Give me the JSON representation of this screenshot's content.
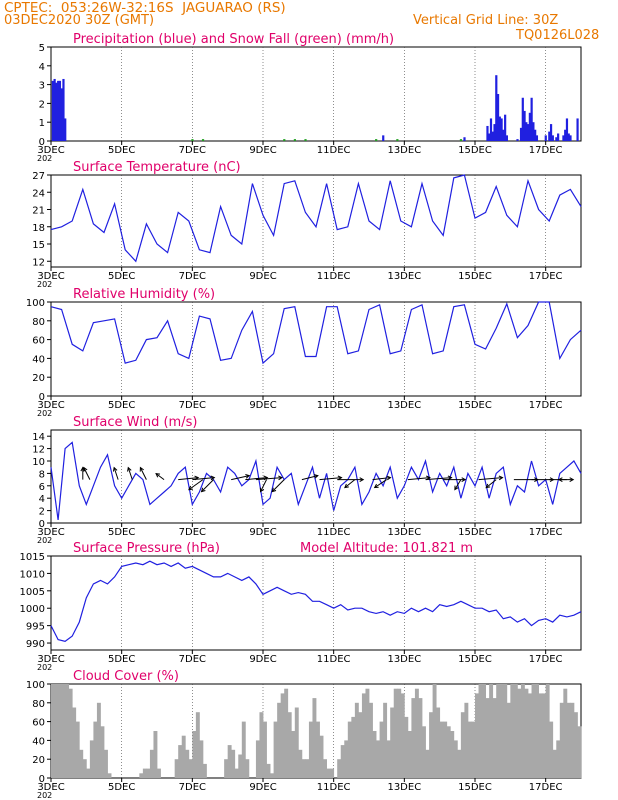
{
  "header": {
    "line1": "CPTEC:  053:26W-32:16S  JAGUARAO (RS)",
    "line2": "03DEC2020 30Z (GMT)",
    "grid_note": "Vertical Grid Line: 30Z",
    "code": "TQ0126L028"
  },
  "colors": {
    "header": "#e87800",
    "panel_title": "#e0006a",
    "line": "#2020e0",
    "snow": "#20a020",
    "cloud": "#a8a8a8",
    "axis": "#000000"
  },
  "x_axis": {
    "start_day": 3,
    "end_day": 18,
    "tick_labels": [
      "3DEC",
      "5DEC",
      "7DEC",
      "9DEC",
      "11DEC",
      "13DEC",
      "15DEC",
      "17DEC"
    ],
    "tick_days": [
      3,
      5,
      7,
      9,
      11,
      13,
      15,
      17
    ],
    "year_stub": "202"
  },
  "chart_data": [
    {
      "type": "bar",
      "title": "Precipitation (blue) and Snow Fall (green) (mm/h)",
      "ylim": [
        0,
        5
      ],
      "yticks": [
        0,
        1,
        2,
        3,
        4,
        5
      ],
      "series": [
        {
          "name": "Precipitation",
          "color": "blue",
          "x": [
            3.05,
            3.1,
            3.15,
            3.2,
            3.25,
            3.3,
            3.35,
            3.4,
            12.4,
            14.7,
            15.35,
            15.4,
            15.45,
            15.5,
            15.55,
            15.6,
            15.65,
            15.7,
            15.75,
            15.8,
            15.85,
            15.9,
            16.2,
            16.3,
            16.35,
            16.4,
            16.45,
            16.5,
            16.55,
            16.6,
            16.65,
            16.7,
            16.75,
            17.0,
            17.1,
            17.15,
            17.2,
            17.3,
            17.35,
            17.5,
            17.55,
            17.6,
            17.65,
            17.7,
            17.9
          ],
          "values": [
            3.2,
            3.3,
            3.1,
            3.2,
            3.2,
            2.8,
            3.3,
            1.2,
            0.3,
            0.2,
            0.8,
            0.4,
            1.2,
            0.5,
            0.9,
            3.5,
            2.5,
            1.3,
            1.2,
            0.6,
            1.4,
            0.3,
            0.1,
            0.7,
            2.3,
            1.6,
            1.0,
            0.9,
            1.5,
            2.3,
            1.0,
            0.6,
            0.3,
            0.3,
            0.5,
            0.9,
            0.3,
            0.2,
            0.4,
            0.3,
            0.6,
            1.2,
            0.4,
            0.3,
            1.2
          ]
        },
        {
          "name": "Snow Fall",
          "color": "green",
          "x": [
            7.0,
            7.3,
            9.6,
            9.9,
            10.2,
            12.2,
            12.8,
            14.6
          ],
          "values": [
            0.1,
            0.1,
            0.1,
            0.1,
            0.1,
            0.1,
            0.1,
            0.1
          ]
        }
      ]
    },
    {
      "type": "line",
      "title": "Surface Temperature (nC)",
      "ylim": [
        11,
        27
      ],
      "yticks": [
        12,
        15,
        18,
        21,
        24,
        27
      ],
      "x": [
        3.0,
        3.3,
        3.6,
        3.9,
        4.2,
        4.5,
        4.8,
        5.1,
        5.4,
        5.7,
        6.0,
        6.3,
        6.6,
        6.9,
        7.2,
        7.5,
        7.8,
        8.1,
        8.4,
        8.7,
        9.0,
        9.3,
        9.6,
        9.9,
        10.2,
        10.5,
        10.8,
        11.1,
        11.4,
        11.7,
        12.0,
        12.3,
        12.6,
        12.9,
        13.2,
        13.5,
        13.8,
        14.1,
        14.4,
        14.7,
        15.0,
        15.3,
        15.6,
        15.9,
        16.2,
        16.5,
        16.8,
        17.1,
        17.4,
        17.7,
        18.0
      ],
      "values": [
        17.5,
        18.0,
        19.0,
        24.5,
        18.5,
        17.0,
        22.0,
        14.0,
        12.0,
        18.5,
        15.0,
        13.5,
        20.5,
        19.0,
        14.0,
        13.5,
        21.5,
        16.5,
        15.0,
        25.5,
        20.0,
        16.5,
        25.5,
        26.0,
        20.5,
        18.0,
        25.5,
        17.5,
        18.0,
        25.5,
        19.0,
        17.5,
        26.0,
        19.0,
        18.0,
        25.5,
        19.0,
        16.5,
        26.5,
        27.0,
        19.5,
        20.5,
        25.0,
        20.0,
        18.0,
        26.0,
        21.0,
        19.0,
        23.5,
        24.5,
        21.5
      ]
    },
    {
      "type": "line",
      "title": "Relative Humidity (%)",
      "ylim": [
        0,
        100
      ],
      "yticks": [
        0,
        20,
        40,
        60,
        80,
        100
      ],
      "x": [
        3.0,
        3.3,
        3.6,
        3.9,
        4.2,
        4.5,
        4.8,
        5.1,
        5.4,
        5.7,
        6.0,
        6.3,
        6.6,
        6.9,
        7.2,
        7.5,
        7.8,
        8.1,
        8.4,
        8.7,
        9.0,
        9.3,
        9.6,
        9.9,
        10.2,
        10.5,
        10.8,
        11.1,
        11.4,
        11.7,
        12.0,
        12.3,
        12.6,
        12.9,
        13.2,
        13.5,
        13.8,
        14.1,
        14.4,
        14.7,
        15.0,
        15.3,
        15.6,
        15.9,
        16.2,
        16.5,
        16.8,
        17.1,
        17.4,
        17.7,
        18.0
      ],
      "values": [
        95,
        92,
        55,
        48,
        78,
        80,
        82,
        35,
        38,
        60,
        62,
        80,
        45,
        40,
        85,
        82,
        38,
        40,
        70,
        90,
        35,
        45,
        93,
        95,
        42,
        42,
        95,
        95,
        45,
        48,
        92,
        97,
        45,
        48,
        92,
        97,
        45,
        48,
        95,
        97,
        55,
        50,
        72,
        98,
        62,
        75,
        100,
        100,
        40,
        60,
        70
      ]
    },
    {
      "type": "line",
      "title": "Surface Wind (m/s)",
      "ylim": [
        0,
        15
      ],
      "yticks": [
        0,
        2,
        4,
        6,
        8,
        10,
        12,
        14
      ],
      "x": [
        3.0,
        3.2,
        3.4,
        3.6,
        3.8,
        4.0,
        4.2,
        4.4,
        4.6,
        4.8,
        5.0,
        5.2,
        5.4,
        5.6,
        5.8,
        6.0,
        6.2,
        6.4,
        6.6,
        6.8,
        7.0,
        7.2,
        7.4,
        7.6,
        7.8,
        8.0,
        8.2,
        8.4,
        8.6,
        8.8,
        9.0,
        9.2,
        9.4,
        9.6,
        9.8,
        10.0,
        10.2,
        10.4,
        10.6,
        10.8,
        11.0,
        11.2,
        11.4,
        11.6,
        11.8,
        12.0,
        12.2,
        12.4,
        12.6,
        12.8,
        13.0,
        13.2,
        13.4,
        13.6,
        13.8,
        14.0,
        14.2,
        14.4,
        14.6,
        14.8,
        15.0,
        15.2,
        15.4,
        15.6,
        15.8,
        16.0,
        16.2,
        16.4,
        16.6,
        16.8,
        17.0,
        17.2,
        17.4,
        17.6,
        17.8,
        18.0
      ],
      "values": [
        9,
        0.5,
        12,
        13,
        6,
        3,
        6,
        9,
        11,
        6,
        4,
        6,
        8,
        7,
        3,
        4,
        5,
        6,
        8,
        9,
        3,
        5,
        8,
        7,
        5,
        9,
        8,
        6,
        7,
        10,
        3,
        4,
        9,
        7,
        8,
        3,
        6,
        9,
        4,
        8,
        2,
        6,
        7,
        9,
        3,
        5,
        8,
        6,
        9,
        4,
        6,
        9,
        7,
        10,
        5,
        8,
        6,
        9,
        4,
        8,
        6,
        9,
        4,
        8,
        9,
        3,
        6,
        5,
        10,
        6,
        7,
        3,
        8,
        9,
        10,
        8
      ],
      "arrows": [
        {
          "day": 3.9,
          "dx": 0,
          "dy": -12
        },
        {
          "day": 4.1,
          "dx": -6,
          "dy": -12
        },
        {
          "day": 4.9,
          "dx": -4,
          "dy": -12
        },
        {
          "day": 5.3,
          "dx": -4,
          "dy": -12
        },
        {
          "day": 5.7,
          "dx": -6,
          "dy": -12
        },
        {
          "day": 6.2,
          "dx": -8,
          "dy": -6
        },
        {
          "day": 6.6,
          "dx": 20,
          "dy": -2
        },
        {
          "day": 7.0,
          "dx": 22,
          "dy": -2
        },
        {
          "day": 7.3,
          "dx": -14,
          "dy": 10
        },
        {
          "day": 7.6,
          "dx": -12,
          "dy": 12
        },
        {
          "day": 8.1,
          "dx": 18,
          "dy": -4
        },
        {
          "day": 8.5,
          "dx": 22,
          "dy": -2
        },
        {
          "day": 8.8,
          "dx": 26,
          "dy": -2
        },
        {
          "day": 9.1,
          "dx": -6,
          "dy": 12
        },
        {
          "day": 9.6,
          "dx": -12,
          "dy": 12
        },
        {
          "day": 10.1,
          "dx": 16,
          "dy": -4
        },
        {
          "day": 10.6,
          "dx": 22,
          "dy": -2
        },
        {
          "day": 11.1,
          "dx": 26,
          "dy": 0
        },
        {
          "day": 11.6,
          "dx": -10,
          "dy": 8
        },
        {
          "day": 12.1,
          "dx": 18,
          "dy": -2
        },
        {
          "day": 12.5,
          "dx": -12,
          "dy": 8
        },
        {
          "day": 13.1,
          "dx": 22,
          "dy": -2
        },
        {
          "day": 13.6,
          "dx": 26,
          "dy": -2
        },
        {
          "day": 14.1,
          "dx": 22,
          "dy": 0
        },
        {
          "day": 14.6,
          "dx": -6,
          "dy": 10
        },
        {
          "day": 15.1,
          "dx": 24,
          "dy": -2
        },
        {
          "day": 15.6,
          "dx": -10,
          "dy": 8
        },
        {
          "day": 16.1,
          "dx": 24,
          "dy": 0
        },
        {
          "day": 16.6,
          "dx": 22,
          "dy": 0
        },
        {
          "day": 17.1,
          "dx": 24,
          "dy": 0
        },
        {
          "day": 17.6,
          "dx": -8,
          "dy": 0
        }
      ]
    },
    {
      "type": "line",
      "title": "Surface Pressure (hPa)",
      "annotation": "Model Altitude: 101.821 m",
      "ylim": [
        988,
        1015
      ],
      "yticks": [
        990,
        995,
        1000,
        1005,
        1010,
        1015
      ],
      "x": [
        3.0,
        3.2,
        3.4,
        3.6,
        3.8,
        4.0,
        4.2,
        4.4,
        4.6,
        4.8,
        5.0,
        5.2,
        5.4,
        5.6,
        5.8,
        6.0,
        6.2,
        6.4,
        6.6,
        6.8,
        7.0,
        7.2,
        7.4,
        7.6,
        7.8,
        8.0,
        8.2,
        8.4,
        8.6,
        8.8,
        9.0,
        9.2,
        9.4,
        9.6,
        9.8,
        10.0,
        10.2,
        10.4,
        10.6,
        10.8,
        11.0,
        11.2,
        11.4,
        11.6,
        11.8,
        12.0,
        12.2,
        12.4,
        12.6,
        12.8,
        13.0,
        13.2,
        13.4,
        13.6,
        13.8,
        14.0,
        14.2,
        14.4,
        14.6,
        14.8,
        15.0,
        15.2,
        15.4,
        15.6,
        15.8,
        16.0,
        16.2,
        16.4,
        16.6,
        16.8,
        17.0,
        17.2,
        17.4,
        17.6,
        17.8,
        18.0
      ],
      "values": [
        995,
        991,
        990.5,
        992,
        996,
        1003,
        1007,
        1008,
        1007,
        1009,
        1012,
        1012.5,
        1013,
        1012.5,
        1013.5,
        1012.5,
        1013,
        1012,
        1013,
        1011.5,
        1012,
        1011,
        1010,
        1009,
        1009,
        1010,
        1009,
        1008,
        1009,
        1007,
        1004,
        1005,
        1006,
        1005,
        1004,
        1004.5,
        1004,
        1002,
        1002,
        1001,
        1000,
        1001,
        999.5,
        1000,
        1000,
        999,
        998.5,
        999,
        998,
        999,
        998.5,
        1000,
        999,
        1000,
        999,
        1001,
        1000.5,
        1001,
        1002,
        1001,
        1000,
        1000,
        999,
        999.5,
        997,
        997.5,
        996,
        997,
        995,
        996.5,
        997,
        996,
        998,
        997.5,
        998,
        999
      ]
    },
    {
      "type": "bar",
      "title": "Cloud Cover (%)",
      "ylim": [
        0,
        100
      ],
      "yticks": [
        0,
        20,
        40,
        60,
        80,
        100
      ],
      "x": [
        3.0,
        3.1,
        3.2,
        3.3,
        3.4,
        3.5,
        3.6,
        3.7,
        3.8,
        3.9,
        4.0,
        4.1,
        4.2,
        4.3,
        4.4,
        4.5,
        4.6,
        4.7,
        4.8,
        4.9,
        5.0,
        5.1,
        5.2,
        5.3,
        5.4,
        5.5,
        5.6,
        5.7,
        5.8,
        5.9,
        6.0,
        6.1,
        6.2,
        6.3,
        6.4,
        6.5,
        6.6,
        6.7,
        6.8,
        6.9,
        7.0,
        7.1,
        7.2,
        7.3,
        7.4,
        7.5,
        7.6,
        7.7,
        7.8,
        7.9,
        8.0,
        8.1,
        8.2,
        8.3,
        8.4,
        8.5,
        8.6,
        8.7,
        8.8,
        8.9,
        9.0,
        9.1,
        9.2,
        9.3,
        9.4,
        9.5,
        9.6,
        9.7,
        9.8,
        9.9,
        10.0,
        10.1,
        10.2,
        10.3,
        10.4,
        10.5,
        10.6,
        10.7,
        10.8,
        10.9,
        11.0,
        11.1,
        11.2,
        11.3,
        11.4,
        11.5,
        11.6,
        11.7,
        11.8,
        11.9,
        12.0,
        12.1,
        12.2,
        12.3,
        12.4,
        12.5,
        12.6,
        12.7,
        12.8,
        12.9,
        13.0,
        13.1,
        13.2,
        13.3,
        13.4,
        13.5,
        13.6,
        13.7,
        13.8,
        13.9,
        14.0,
        14.1,
        14.2,
        14.3,
        14.4,
        14.5,
        14.6,
        14.7,
        14.8,
        14.9,
        15.0,
        15.1,
        15.2,
        15.3,
        15.4,
        15.5,
        15.6,
        15.7,
        15.8,
        15.9,
        16.0,
        16.1,
        16.2,
        16.3,
        16.4,
        16.5,
        16.6,
        16.7,
        16.8,
        16.9,
        17.0,
        17.1,
        17.2,
        17.3,
        17.4,
        17.5,
        17.6,
        17.7,
        17.8,
        17.9
      ],
      "values": [
        100,
        100,
        100,
        100,
        100,
        95,
        75,
        60,
        30,
        20,
        10,
        40,
        60,
        80,
        55,
        30,
        5,
        0,
        0,
        0,
        0,
        0,
        0,
        0,
        0,
        5,
        10,
        10,
        30,
        50,
        10,
        0,
        0,
        0,
        0,
        20,
        35,
        45,
        30,
        20,
        50,
        70,
        40,
        15,
        0,
        0,
        0,
        0,
        0,
        20,
        35,
        30,
        10,
        25,
        60,
        20,
        0,
        0,
        40,
        70,
        60,
        15,
        5,
        60,
        80,
        90,
        95,
        70,
        50,
        75,
        30,
        20,
        20,
        60,
        85,
        60,
        45,
        20,
        10,
        10,
        0,
        20,
        35,
        40,
        60,
        65,
        80,
        70,
        90,
        95,
        80,
        50,
        40,
        60,
        80,
        40,
        75,
        95,
        95,
        90,
        65,
        50,
        85,
        95,
        85,
        55,
        30,
        70,
        100,
        75,
        60,
        60,
        55,
        50,
        40,
        30,
        70,
        80,
        60,
        60,
        90,
        100,
        100,
        85,
        100,
        85,
        100,
        100,
        100,
        80,
        100,
        100,
        95,
        100,
        95,
        90,
        100,
        100,
        90,
        90,
        100,
        60,
        30,
        40,
        80,
        95,
        80,
        80,
        70,
        55
      ]
    }
  ]
}
